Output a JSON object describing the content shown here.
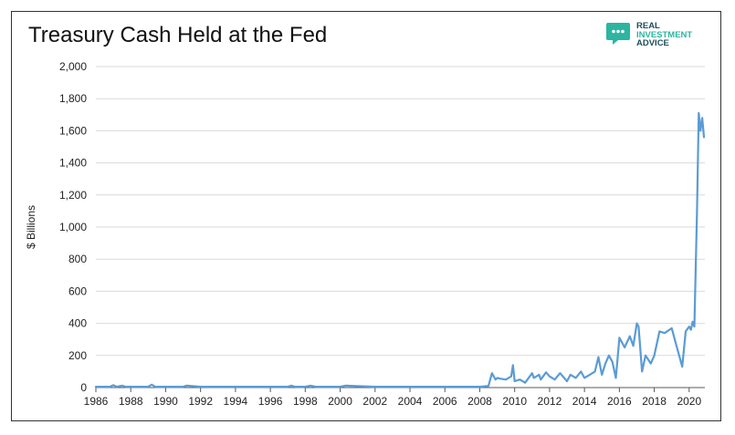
{
  "title": "Treasury Cash Held at the Fed",
  "logo": {
    "line1": "REAL",
    "line2": "INVESTMENT",
    "line3": "ADVICE",
    "icon": "chat-bubble-icon",
    "color_dark": "#1f4e5a",
    "color_accent": "#2cb5a0"
  },
  "colors": {
    "line": "#5b9bd5",
    "grid": "#d9d9d9",
    "axis": "#595959",
    "text": "#222222"
  },
  "chart_data": {
    "type": "line",
    "title": "Treasury Cash Held at the Fed",
    "xlabel": "",
    "ylabel": "$ Billions",
    "xlim": [
      1986,
      2020.9
    ],
    "ylim": [
      0,
      2000
    ],
    "grid": "horizontal",
    "yticks": [
      0,
      200,
      400,
      600,
      800,
      1000,
      1200,
      1400,
      1600,
      1800,
      2000
    ],
    "ytick_labels": [
      "0",
      "200",
      "400",
      "600",
      "800",
      "1,000",
      "1,200",
      "1,400",
      "1,600",
      "1,800",
      "2,000"
    ],
    "xticks": [
      1986,
      1988,
      1990,
      1992,
      1994,
      1996,
      1998,
      2000,
      2002,
      2004,
      2006,
      2008,
      2010,
      2012,
      2014,
      2016,
      2018,
      2020
    ],
    "xtick_labels": [
      "1986",
      "1988",
      "1990",
      "1992",
      "1994",
      "1996",
      "1998",
      "2000",
      "2002",
      "2004",
      "2006",
      "2008",
      "2010",
      "2012",
      "2014",
      "2016",
      "2018",
      "2020"
    ],
    "series": [
      {
        "x": [
          1986.0,
          1986.8,
          1987.0,
          1987.2,
          1987.5,
          1987.7,
          1988.0,
          1989.0,
          1989.2,
          1989.4,
          1990.5,
          1991.0,
          1991.2,
          1992.0,
          1992.5,
          1993.0,
          1993.5,
          1994.0,
          1995.0,
          1996.0,
          1997.0,
          1997.2,
          1997.4,
          1998.0,
          1998.3,
          1998.6,
          1999.0,
          1999.8,
          2000.0,
          2000.3,
          2002.0,
          2004.0,
          2006.0,
          2008.0,
          2008.5,
          2008.7,
          2008.9,
          2009.0,
          2009.2,
          2009.5,
          2009.8,
          2009.9,
          2010.0,
          2010.3,
          2010.6,
          2011.0,
          2011.1,
          2011.4,
          2011.5,
          2011.8,
          2012.0,
          2012.3,
          2012.6,
          2013.0,
          2013.2,
          2013.5,
          2013.8,
          2014.0,
          2014.3,
          2014.6,
          2014.8,
          2015.0,
          2015.2,
          2015.4,
          2015.6,
          2015.8,
          2016.0,
          2016.3,
          2016.6,
          2016.8,
          2017.0,
          2017.1,
          2017.3,
          2017.5,
          2017.8,
          2018.0,
          2018.3,
          2018.6,
          2019.0,
          2019.3,
          2019.6,
          2019.8,
          2020.0,
          2020.1,
          2020.2,
          2020.3,
          2020.45,
          2020.55,
          2020.65,
          2020.75,
          2020.85
        ],
        "y": [
          5,
          5,
          15,
          5,
          12,
          5,
          5,
          5,
          18,
          5,
          5,
          5,
          12,
          5,
          5,
          5,
          5,
          5,
          5,
          5,
          5,
          12,
          5,
          5,
          12,
          5,
          5,
          5,
          5,
          12,
          5,
          5,
          5,
          5,
          10,
          90,
          50,
          60,
          55,
          50,
          70,
          140,
          40,
          50,
          30,
          90,
          60,
          80,
          50,
          95,
          70,
          50,
          90,
          40,
          80,
          60,
          100,
          60,
          80,
          100,
          190,
          80,
          150,
          200,
          160,
          60,
          310,
          250,
          320,
          260,
          400,
          380,
          100,
          200,
          150,
          200,
          350,
          340,
          370,
          250,
          130,
          350,
          380,
          360,
          410,
          380,
          1100,
          1710,
          1600,
          1680,
          1560
        ]
      }
    ]
  }
}
